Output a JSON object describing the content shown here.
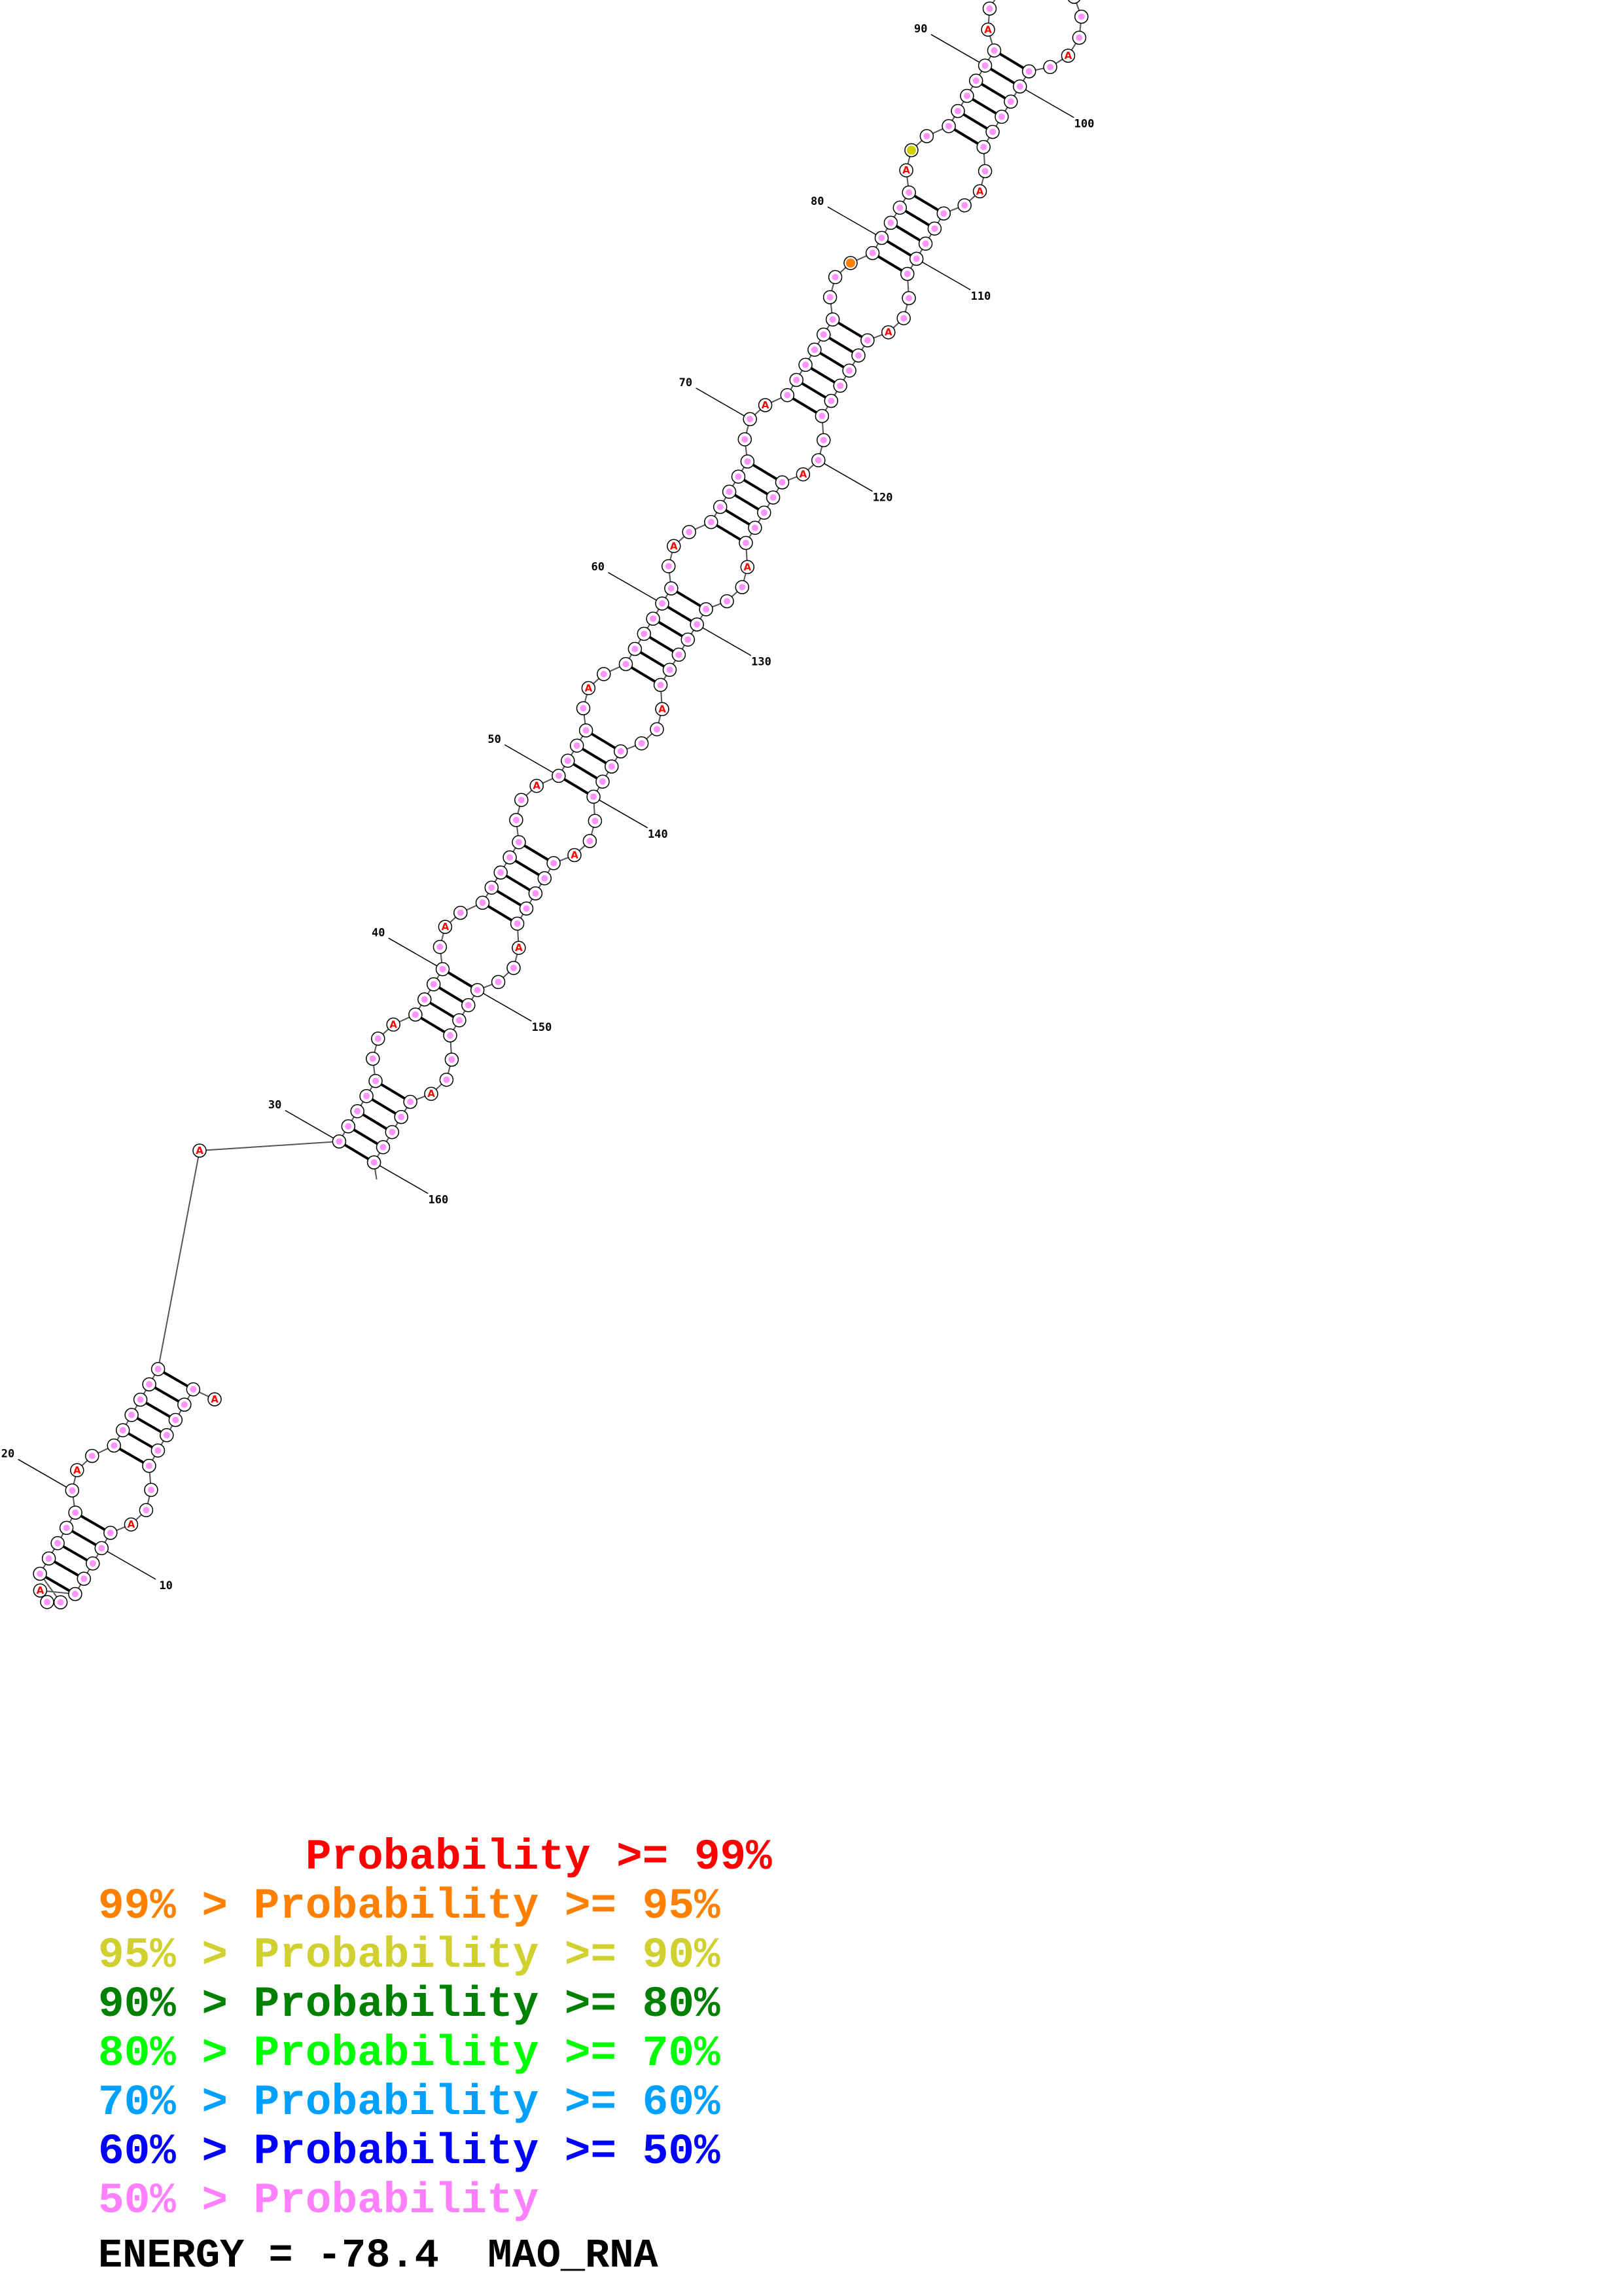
{
  "structure": {
    "nucleotide_labels": [
      {
        "number": "10"
      },
      {
        "number": "20"
      },
      {
        "number": "30"
      },
      {
        "number": "40"
      },
      {
        "number": "50"
      },
      {
        "number": "60"
      },
      {
        "number": "70"
      },
      {
        "number": "80"
      },
      {
        "number": "90"
      },
      {
        "number": "100"
      },
      {
        "number": "110"
      },
      {
        "number": "120"
      },
      {
        "number": "130"
      },
      {
        "number": "140"
      },
      {
        "number": "150"
      },
      {
        "number": "160"
      }
    ],
    "base_letter": "A",
    "colors": {
      "default_base": "#ff80ff",
      "high_confidence_base": "#ff0000",
      "orange_base": "#ff8000",
      "yellow_base": "#d0d000"
    }
  },
  "legend": {
    "lines": [
      {
        "text": "        Probability >= 99%",
        "color": "#ff0000"
      },
      {
        "text": "99% > Probability >= 95%",
        "color": "#ff8000"
      },
      {
        "text": "95% > Probability >= 90%",
        "color": "#d0d030"
      },
      {
        "text": "90% > Probability >= 80%",
        "color": "#008000"
      },
      {
        "text": "80% > Probability >= 70%",
        "color": "#00ff00"
      },
      {
        "text": "70% > Probability >= 60%",
        "color": "#00a0ff"
      },
      {
        "text": "60% > Probability >= 50%",
        "color": "#0000ff"
      },
      {
        "text": "50% > Probability",
        "color": "#ff80ff"
      }
    ]
  },
  "footer": {
    "energy": "ENERGY = -78.4  MAO_RNA"
  }
}
